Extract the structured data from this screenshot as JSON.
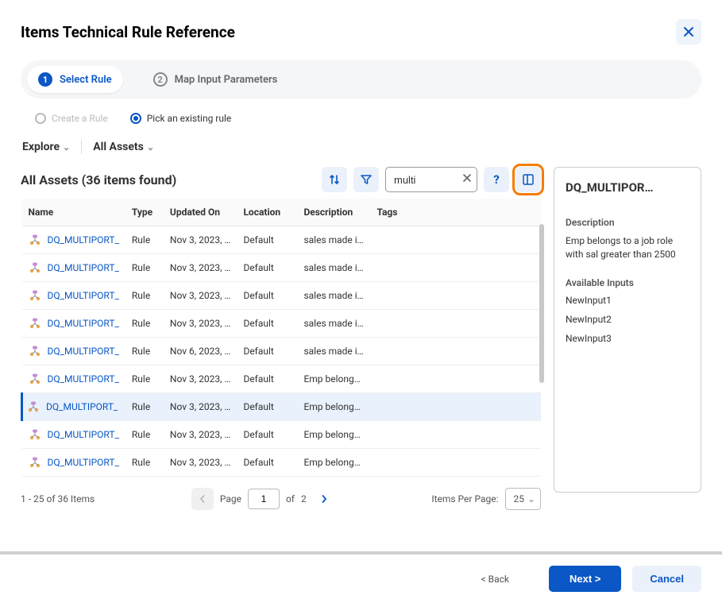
{
  "dialog_title": "Items Technical Rule Reference",
  "stepper": {
    "steps": [
      {
        "num": "1",
        "label": "Select Rule",
        "active": true
      },
      {
        "num": "2",
        "label": "Map Input Parameters",
        "active": false
      }
    ]
  },
  "rule_mode": {
    "create_label": "Create a Rule",
    "pick_label": "Pick an existing rule",
    "selected": "pick"
  },
  "filter_bar": {
    "explore_label": "Explore",
    "all_assets_label": "All Assets"
  },
  "assets_header": {
    "title": "All Assets (36 items found)"
  },
  "search": {
    "value": "multi",
    "placeholder": ""
  },
  "columns": {
    "name": "Name",
    "type": "Type",
    "updated": "Updated On",
    "location": "Location",
    "description": "Description",
    "tags": "Tags"
  },
  "rows": [
    {
      "name": "DQ_MULTIPORT_",
      "type": "Rule",
      "updated": "Nov 3, 2023, …",
      "location": "Default",
      "description": "sales made i…",
      "tags": "",
      "selected": false
    },
    {
      "name": "DQ_MULTIPORT_",
      "type": "Rule",
      "updated": "Nov 3, 2023, …",
      "location": "Default",
      "description": "sales made i…",
      "tags": "",
      "selected": false
    },
    {
      "name": "DQ_MULTIPORT_",
      "type": "Rule",
      "updated": "Nov 3, 2023, …",
      "location": "Default",
      "description": "sales made i…",
      "tags": "",
      "selected": false
    },
    {
      "name": "DQ_MULTIPORT_",
      "type": "Rule",
      "updated": "Nov 3, 2023, …",
      "location": "Default",
      "description": "sales made i…",
      "tags": "",
      "selected": false
    },
    {
      "name": "DQ_MULTIPORT_",
      "type": "Rule",
      "updated": "Nov 6, 2023, …",
      "location": "Default",
      "description": "sales made i…",
      "tags": "",
      "selected": false
    },
    {
      "name": "DQ_MULTIPORT_",
      "type": "Rule",
      "updated": "Nov 3, 2023, …",
      "location": "Default",
      "description": "Emp belong…",
      "tags": "",
      "selected": false
    },
    {
      "name": "DQ_MULTIPORT_",
      "type": "Rule",
      "updated": "Nov 3, 2023, …",
      "location": "Default",
      "description": "Emp belong…",
      "tags": "",
      "selected": true
    },
    {
      "name": "DQ_MULTIPORT_",
      "type": "Rule",
      "updated": "Nov 3, 2023, …",
      "location": "Default",
      "description": "Emp belong…",
      "tags": "",
      "selected": false
    },
    {
      "name": "DQ_MULTIPORT_",
      "type": "Rule",
      "updated": "Nov 3, 2023, …",
      "location": "Default",
      "description": "Emp belong…",
      "tags": "",
      "selected": false
    }
  ],
  "pagination": {
    "range_label": "1 - 25 of 36 Items",
    "page_label": "Page",
    "of_label": "of",
    "current_page": "1",
    "total_pages": "2",
    "ipp_label": "Items Per Page:",
    "ipp_value": "25"
  },
  "detail": {
    "title": "DQ_MULTIPOR…",
    "desc_label": "Description",
    "desc_text": "Emp belongs to a job role with sal greater than 2500",
    "inputs_label": "Available Inputs",
    "inputs": [
      "NewInput1",
      "NewInput2",
      "NewInput3"
    ]
  },
  "footer": {
    "back_label": "< Back",
    "next_label": "Next >",
    "cancel_label": "Cancel"
  },
  "colors": {
    "primary": "#0a57c5",
    "highlight_border": "#f57c00",
    "bg_light": "#eaf1fa"
  }
}
